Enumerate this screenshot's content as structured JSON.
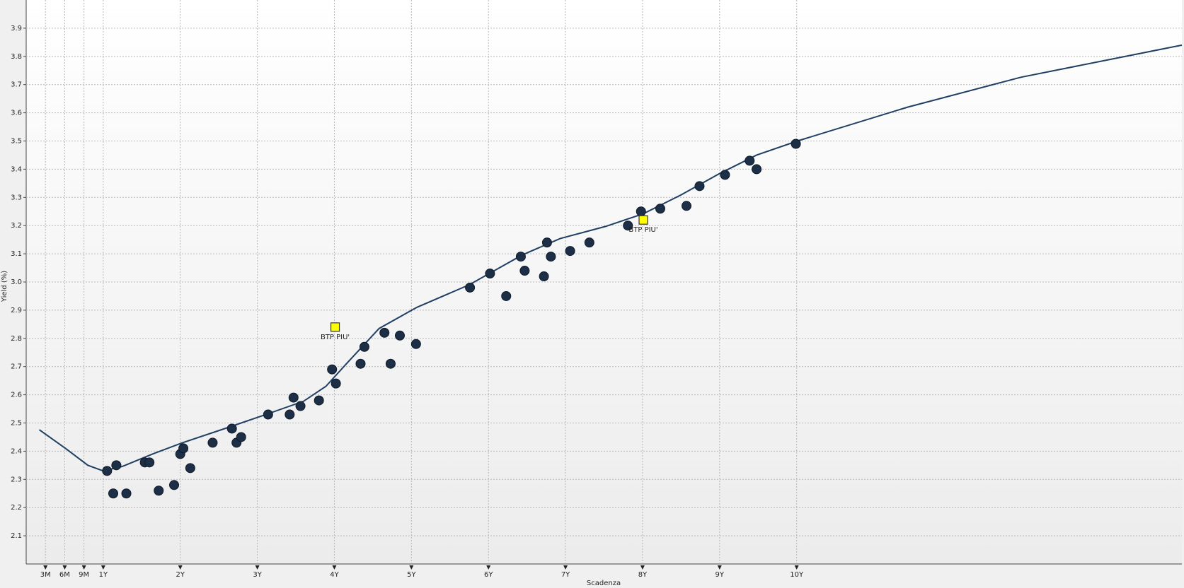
{
  "chart_data": {
    "type": "scatter",
    "x_label": "Scadenza",
    "y_label": "Yield (%)",
    "xlim": [
      0,
      15
    ],
    "ylim": [
      2.0,
      4.0
    ],
    "xticks": [
      {
        "value": 0.25,
        "label": "3M"
      },
      {
        "value": 0.5,
        "label": "6M"
      },
      {
        "value": 0.75,
        "label": "9M"
      },
      {
        "value": 1,
        "label": "1Y"
      },
      {
        "value": 2,
        "label": "2Y"
      },
      {
        "value": 3,
        "label": "3Y"
      },
      {
        "value": 4,
        "label": "4Y"
      },
      {
        "value": 5,
        "label": "5Y"
      },
      {
        "value": 6,
        "label": "6Y"
      },
      {
        "value": 7,
        "label": "7Y"
      },
      {
        "value": 8,
        "label": "8Y"
      },
      {
        "value": 9,
        "label": "9Y"
      },
      {
        "value": 10,
        "label": "10Y"
      }
    ],
    "yticks": [
      2.1,
      2.2,
      2.3,
      2.4,
      2.5,
      2.6,
      2.7,
      2.8,
      2.9,
      {
        "value": 3,
        "label": "3.0"
      },
      3.1,
      3.2,
      3.3,
      3.4,
      3.5,
      3.6,
      3.7,
      3.8,
      3.9
    ],
    "grid": true,
    "series": [
      {
        "type": "line",
        "color": "#1f3f63",
        "x": [
          0.17,
          0.51,
          0.8,
          1.0,
          1.25,
          1.64,
          2.03,
          2.62,
          3.11,
          3.6,
          3.89,
          4.19,
          4.58,
          5.07,
          5.75,
          6.44,
          6.93,
          7.52,
          8.01,
          8.5,
          8.99,
          9.48,
          10.01,
          11.44,
          12.91,
          15.0
        ],
        "values": [
          2.476,
          2.41,
          2.35,
          2.33,
          2.346,
          2.39,
          2.43,
          2.484,
          2.53,
          2.577,
          2.63,
          2.72,
          2.835,
          2.91,
          2.99,
          3.096,
          3.154,
          3.197,
          3.242,
          3.309,
          3.383,
          3.45,
          3.5,
          3.62,
          3.726,
          3.84
        ]
      },
      {
        "type": "scatter",
        "marker": "circle",
        "color": "#1c2f47",
        "x": [
          1.05,
          1.17,
          1.13,
          1.3,
          1.54,
          1.6,
          1.72,
          1.92,
          2.0,
          2.04,
          2.13,
          2.42,
          2.67,
          2.73,
          2.79,
          3.14,
          3.42,
          3.47,
          3.56,
          3.8,
          3.97,
          4.02,
          4.34,
          4.39,
          4.65,
          4.73,
          4.85,
          5.06,
          5.76,
          6.02,
          6.23,
          6.42,
          6.47,
          6.72,
          6.76,
          6.81,
          7.06,
          7.31,
          7.81,
          7.98,
          8.23,
          8.57,
          8.74,
          9.07,
          9.39,
          9.48,
          9.99
        ],
        "values": [
          2.33,
          2.35,
          2.25,
          2.25,
          2.36,
          2.36,
          2.26,
          2.28,
          2.39,
          2.41,
          2.34,
          2.43,
          2.48,
          2.43,
          2.45,
          2.53,
          2.53,
          2.59,
          2.56,
          2.58,
          2.69,
          2.64,
          2.71,
          2.77,
          2.82,
          2.71,
          2.81,
          2.78,
          2.98,
          3.03,
          2.95,
          3.09,
          3.04,
          3.02,
          3.14,
          3.09,
          3.11,
          3.14,
          3.2,
          3.25,
          3.26,
          3.27,
          3.34,
          3.38,
          3.43,
          3.4,
          3.49
        ]
      },
      {
        "type": "scatter",
        "marker": "square",
        "color": "#ffff00",
        "x": [
          4.01,
          8.01
        ],
        "values": [
          2.84,
          3.22
        ],
        "point_labels": [
          "BTP PIU'",
          "BTP PIU'"
        ]
      }
    ]
  }
}
